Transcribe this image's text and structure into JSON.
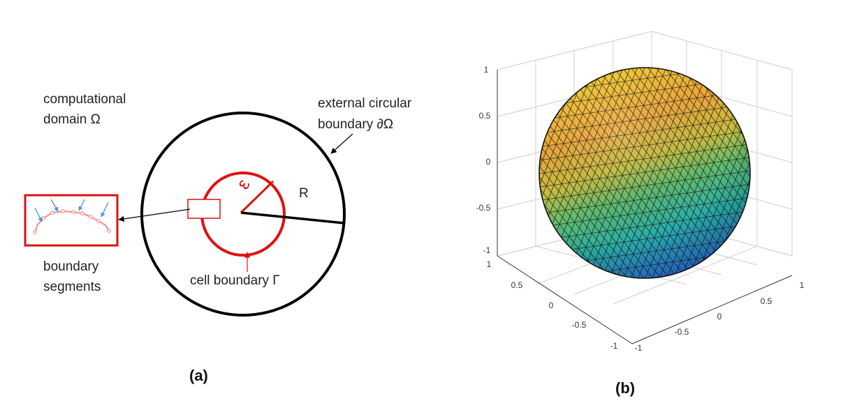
{
  "panel_a": {
    "caption": "(a)",
    "domain_label": [
      "computational",
      "domain Ω"
    ],
    "external_label": [
      "external circular",
      "boundary ∂Ω"
    ],
    "cell_label": "cell boundary Γ",
    "segments_label": [
      "boundary",
      "segments"
    ],
    "epsilon_label": "ε",
    "radius_label": "R",
    "colors": {
      "outer": "#000000",
      "cell": "#e01010",
      "arrows": "#4a90d9"
    }
  },
  "panel_b": {
    "caption": "(b)",
    "z_ticks": [
      "1",
      "0.5",
      "0",
      "-0.5",
      "-1"
    ],
    "x_ticks": [
      "-1",
      "-0.5",
      "0",
      "0.5",
      "1"
    ],
    "y_ticks": [
      "-1",
      "-0.5",
      "0",
      "0.5",
      "1"
    ],
    "colormap": [
      "#f7d733",
      "#f0a83a",
      "#9ec24a",
      "#2bb2a4",
      "#2a7fd6"
    ]
  }
}
